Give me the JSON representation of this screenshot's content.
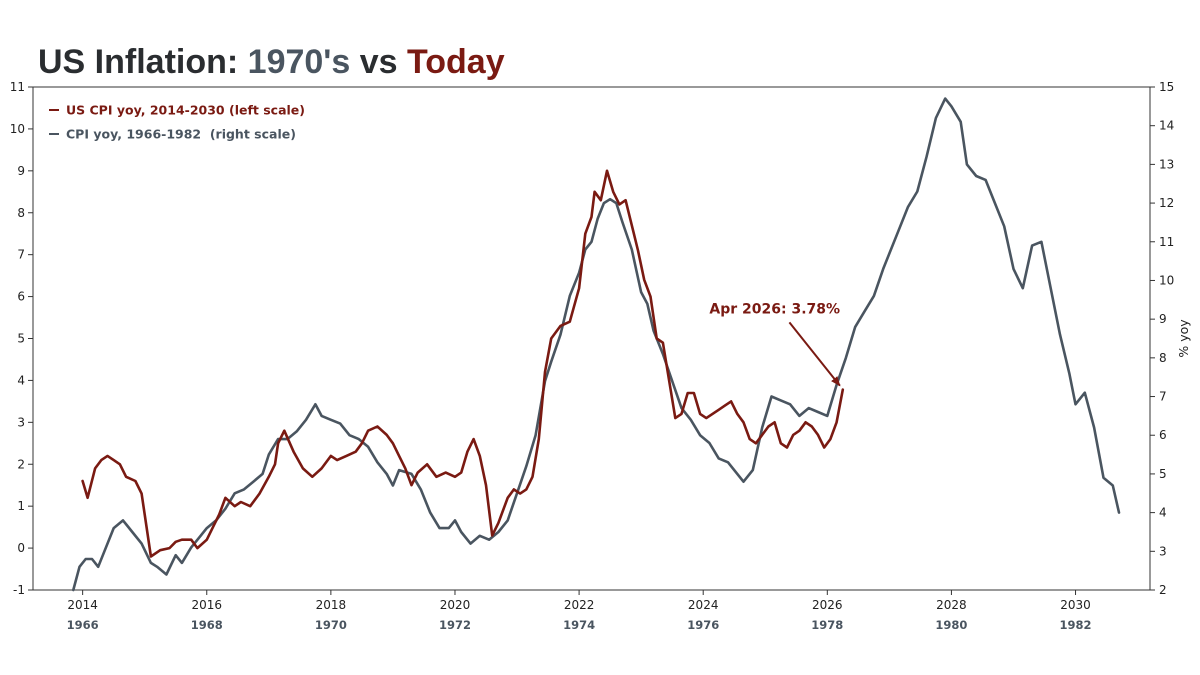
{
  "title": {
    "part1": "US Inflation: ",
    "part2": "1970's",
    "part3": " vs ",
    "part4": "Today",
    "color1": "#2a2d30",
    "color2": "#4a5560",
    "color3": "#2a2d30",
    "color4": "#7a1a12"
  },
  "chart_data": {
    "type": "line",
    "legend_position": "top-left",
    "grid": false,
    "left_axis": {
      "ylim": [
        -1,
        11
      ],
      "ticks": [
        -1,
        0,
        1,
        2,
        3,
        4,
        5,
        6,
        7,
        8,
        9,
        10,
        11
      ],
      "label": ""
    },
    "right_axis": {
      "ylim": [
        2,
        15
      ],
      "ticks": [
        2,
        3,
        4,
        5,
        6,
        7,
        8,
        9,
        10,
        11,
        12,
        13,
        14,
        15
      ],
      "label": "% yoy"
    },
    "x_axis": {
      "xlim": [
        2013.2,
        2031.2
      ],
      "ticks": [
        2014,
        2016,
        2018,
        2020,
        2022,
        2024,
        2026,
        2028,
        2030
      ],
      "secondary_ticks": [
        "1966",
        "1968",
        "1970",
        "1972",
        "1974",
        "1976",
        "1978",
        "1980",
        "1982"
      ]
    },
    "series": [
      {
        "name": "US CPI yoy, 2014-2030 (left scale)",
        "axis": "left",
        "color": "#7a1a12",
        "x": [
          2014.0,
          2014.08,
          2014.2,
          2014.3,
          2014.4,
          2014.5,
          2014.6,
          2014.7,
          2014.85,
          2014.95,
          2015.0,
          2015.1,
          2015.25,
          2015.4,
          2015.5,
          2015.6,
          2015.75,
          2015.85,
          2016.0,
          2016.1,
          2016.2,
          2016.3,
          2016.45,
          2016.55,
          2016.7,
          2016.85,
          2017.0,
          2017.1,
          2017.15,
          2017.25,
          2017.4,
          2017.55,
          2017.7,
          2017.85,
          2018.0,
          2018.1,
          2018.25,
          2018.4,
          2018.5,
          2018.6,
          2018.75,
          2018.9,
          2019.0,
          2019.1,
          2019.2,
          2019.3,
          2019.4,
          2019.55,
          2019.7,
          2019.85,
          2020.0,
          2020.1,
          2020.2,
          2020.3,
          2020.4,
          2020.5,
          2020.6,
          2020.7,
          2020.85,
          2020.95,
          2021.05,
          2021.15,
          2021.25,
          2021.35,
          2021.45,
          2021.55,
          2021.7,
          2021.85,
          2022.0,
          2022.1,
          2022.2,
          2022.25,
          2022.35,
          2022.45,
          2022.55,
          2022.65,
          2022.75,
          2022.85,
          2022.95,
          2023.05,
          2023.15,
          2023.25,
          2023.35,
          2023.45,
          2023.55,
          2023.65,
          2023.75,
          2023.85,
          2023.95,
          2024.05,
          2024.15,
          2024.25,
          2024.35,
          2024.45,
          2024.55,
          2024.65,
          2024.75,
          2024.85,
          2024.95,
          2025.05,
          2025.15,
          2025.25,
          2025.35,
          2025.45,
          2025.55,
          2025.65,
          2025.75,
          2025.85,
          2025.95,
          2026.05,
          2026.15,
          2026.25
        ],
        "y": [
          1.6,
          1.2,
          1.9,
          2.1,
          2.2,
          2.1,
          2.0,
          1.7,
          1.6,
          1.3,
          0.8,
          -0.2,
          -0.05,
          0.0,
          0.15,
          0.2,
          0.2,
          0.0,
          0.2,
          0.5,
          0.8,
          1.2,
          1.0,
          1.1,
          1.0,
          1.3,
          1.7,
          2.0,
          2.5,
          2.8,
          2.3,
          1.9,
          1.7,
          1.9,
          2.2,
          2.1,
          2.2,
          2.3,
          2.5,
          2.8,
          2.9,
          2.7,
          2.5,
          2.2,
          1.9,
          1.5,
          1.8,
          2.0,
          1.7,
          1.8,
          1.7,
          1.8,
          2.3,
          2.6,
          2.2,
          1.5,
          0.3,
          0.6,
          1.2,
          1.4,
          1.3,
          1.4,
          1.7,
          2.6,
          4.2,
          5.0,
          5.3,
          5.4,
          6.2,
          7.5,
          7.9,
          8.5,
          8.3,
          9.0,
          8.5,
          8.2,
          8.3,
          7.7,
          7.1,
          6.4,
          6.0,
          5.0,
          4.9,
          4.0,
          3.1,
          3.2,
          3.7,
          3.7,
          3.2,
          3.1,
          3.2,
          3.3,
          3.4,
          3.5,
          3.2,
          3.0,
          2.6,
          2.5,
          2.7,
          2.9,
          3.0,
          2.5,
          2.4,
          2.7,
          2.8,
          3.0,
          2.9,
          2.7,
          2.4,
          2.6,
          3.0,
          3.78
        ]
      },
      {
        "name": "CPI yoy, 1966-1982  (right scale)",
        "axis": "right",
        "color": "#4a5560",
        "x": [
          2013.85,
          2013.95,
          2014.05,
          2014.15,
          2014.25,
          2014.35,
          2014.5,
          2014.65,
          2014.8,
          2014.95,
          2015.1,
          2015.2,
          2015.35,
          2015.5,
          2015.6,
          2015.75,
          2015.9,
          2016.0,
          2016.15,
          2016.3,
          2016.45,
          2016.6,
          2016.75,
          2016.9,
          2017.0,
          2017.15,
          2017.3,
          2017.45,
          2017.6,
          2017.75,
          2017.85,
          2018.0,
          2018.15,
          2018.3,
          2018.45,
          2018.6,
          2018.75,
          2018.9,
          2019.0,
          2019.1,
          2019.3,
          2019.45,
          2019.6,
          2019.75,
          2019.9,
          2020.0,
          2020.1,
          2020.25,
          2020.4,
          2020.55,
          2020.7,
          2020.85,
          2021.0,
          2021.15,
          2021.3,
          2021.45,
          2021.55,
          2021.7,
          2021.85,
          2022.0,
          2022.1,
          2022.2,
          2022.3,
          2022.4,
          2022.5,
          2022.6,
          2022.7,
          2022.85,
          2023.0,
          2023.1,
          2023.2,
          2023.35,
          2023.5,
          2023.65,
          2023.8,
          2023.95,
          2024.1,
          2024.25,
          2024.4,
          2024.55,
          2024.65,
          2024.8,
          2024.95,
          2025.1,
          2025.25,
          2025.4,
          2025.55,
          2025.7,
          2025.85,
          2026.0,
          2026.15,
          2026.3,
          2026.45,
          2026.6,
          2026.75,
          2026.9,
          2027.0,
          2027.15,
          2027.3,
          2027.45,
          2027.6,
          2027.75,
          2027.9,
          2028.0,
          2028.15,
          2028.25,
          2028.4,
          2028.55,
          2028.7,
          2028.85,
          2029.0,
          2029.15,
          2029.3,
          2029.45,
          2029.6,
          2029.75,
          2029.9,
          2030.0,
          2030.15,
          2030.3,
          2030.45,
          2030.6,
          2030.7
        ],
        "y": [
          2.0,
          2.6,
          2.8,
          2.8,
          2.6,
          3.0,
          3.6,
          3.8,
          3.5,
          3.2,
          2.7,
          2.6,
          2.4,
          2.9,
          2.7,
          3.1,
          3.4,
          3.6,
          3.8,
          4.1,
          4.5,
          4.6,
          4.8,
          5.0,
          5.5,
          5.9,
          5.9,
          6.1,
          6.4,
          6.8,
          6.5,
          6.4,
          6.3,
          6.0,
          5.9,
          5.7,
          5.3,
          5.0,
          4.7,
          5.1,
          5.0,
          4.6,
          4.0,
          3.6,
          3.6,
          3.8,
          3.5,
          3.2,
          3.4,
          3.3,
          3.5,
          3.8,
          4.5,
          5.2,
          6.0,
          7.4,
          7.9,
          8.6,
          9.6,
          10.2,
          10.8,
          11.0,
          11.6,
          12.0,
          12.1,
          12.0,
          11.5,
          10.8,
          9.7,
          9.4,
          8.7,
          8.1,
          7.4,
          6.7,
          6.4,
          6.0,
          5.8,
          5.4,
          5.3,
          5.0,
          4.8,
          5.1,
          6.2,
          7.0,
          6.9,
          6.8,
          6.5,
          6.7,
          6.6,
          6.5,
          7.3,
          8.0,
          8.8,
          9.2,
          9.6,
          10.3,
          10.7,
          11.3,
          11.9,
          12.3,
          13.2,
          14.2,
          14.7,
          14.5,
          14.1,
          13.0,
          12.7,
          12.6,
          12.0,
          11.4,
          10.3,
          9.8,
          10.9,
          11.0,
          9.8,
          8.6,
          7.6,
          6.8,
          7.1,
          6.2,
          4.9,
          4.7,
          4.0
        ]
      }
    ],
    "annotation": {
      "text": "Apr 2026: 3.78%",
      "color": "#7a1a12",
      "target_x": 2026.25,
      "target_y": 3.78,
      "text_x": 2024.1,
      "text_y": 5.6
    }
  }
}
